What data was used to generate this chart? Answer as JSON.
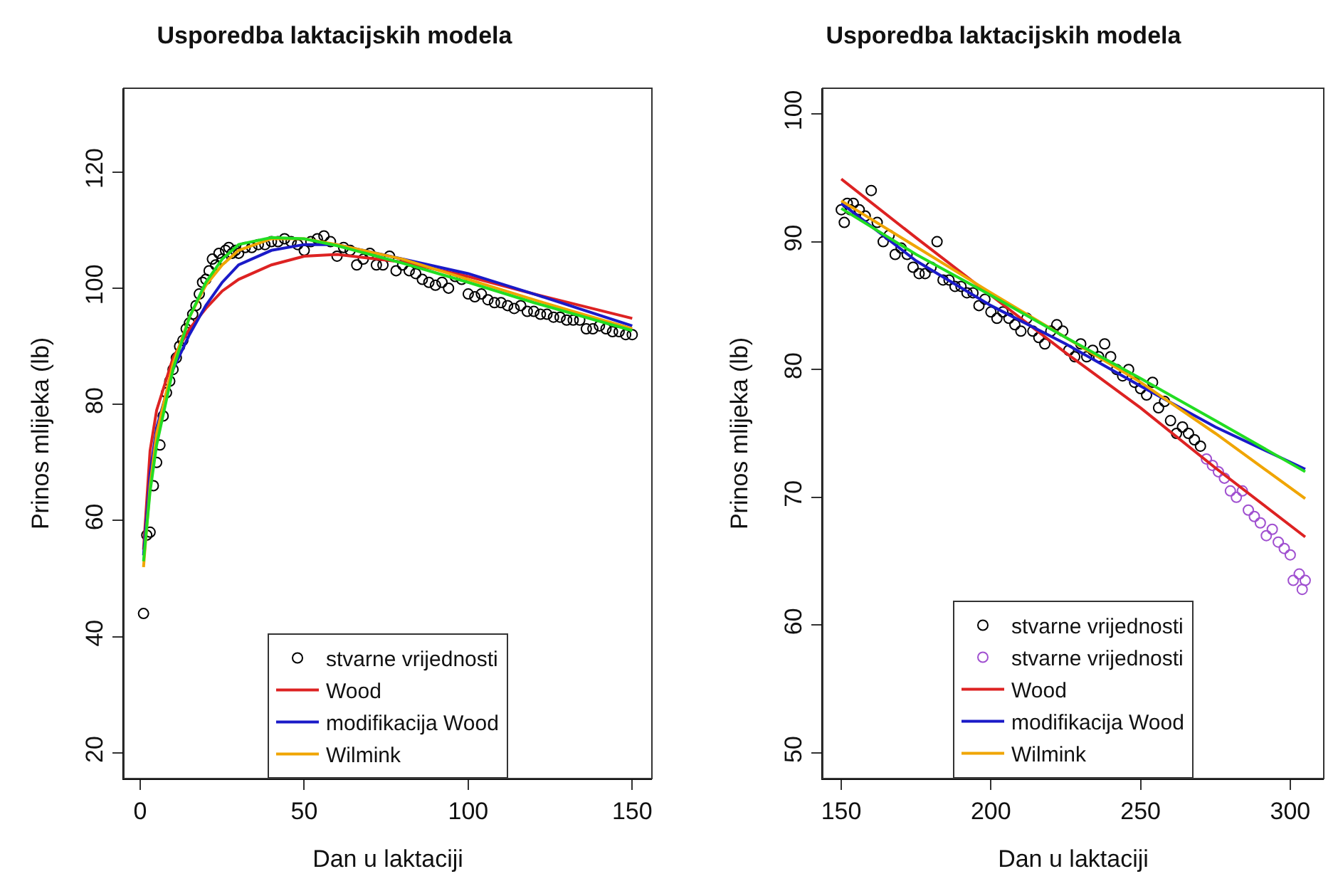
{
  "chart_data": [
    {
      "type": "scatter",
      "title": "Usporedba laktacijskih modela",
      "xlabel": "Dan u laktaciji",
      "ylabel": "Prinos mlijeka (lb)",
      "xlim": [
        -5,
        156
      ],
      "xticks": [
        0,
        50,
        100,
        150
      ],
      "ylim": [
        15.6,
        134.4
      ],
      "yticks": [
        20,
        40,
        60,
        80,
        100,
        120
      ],
      "grid": false,
      "legend": "bottom",
      "marker": "circle",
      "series": [
        {
          "name": "stvarne vrijednosti",
          "color": "#000000",
          "x": [
            1,
            2,
            3,
            4,
            5,
            6,
            7,
            8,
            9,
            10,
            11,
            12,
            13,
            14,
            15,
            16,
            17,
            18,
            19,
            20,
            21,
            22,
            23,
            24,
            25,
            26,
            27,
            28,
            29,
            30,
            32,
            34,
            36,
            38,
            40,
            42,
            44,
            46,
            48,
            50,
            52,
            54,
            56,
            58,
            60,
            62,
            64,
            66,
            68,
            70,
            72,
            74,
            76,
            78,
            80,
            82,
            84,
            86,
            88,
            90,
            92,
            94,
            96,
            98,
            100,
            102,
            104,
            106,
            108,
            110,
            112,
            114,
            116,
            118,
            120,
            122,
            124,
            126,
            128,
            130,
            132,
            134,
            136,
            138,
            140,
            142,
            144,
            146,
            148,
            150
          ],
          "values": [
            44,
            57.5,
            58,
            66,
            70,
            73,
            78,
            82,
            84,
            86,
            88,
            90,
            91,
            93,
            94,
            95.5,
            97,
            99,
            101,
            101.5,
            103,
            105,
            104,
            106,
            105,
            106.5,
            107,
            106,
            106.5,
            106,
            107,
            107,
            107.5,
            107.5,
            108,
            108,
            108.5,
            108,
            107.5,
            106.5,
            108,
            108.5,
            109,
            108,
            105.5,
            107,
            106.5,
            104,
            105,
            106,
            104,
            104,
            105.5,
            103,
            104,
            103,
            102.5,
            101.5,
            101,
            100.5,
            101,
            100,
            102,
            101.5,
            99,
            98.5,
            99,
            98,
            97.5,
            97.5,
            97,
            96.5,
            97,
            96,
            96,
            95.5,
            95.5,
            95,
            95,
            94.5,
            94.5,
            94.5,
            93,
            93,
            93.5,
            93,
            92.5,
            92.5,
            92,
            92
          ]
        },
        {
          "name": "Wood",
          "type": "line",
          "marker": "none",
          "color": "#dd2222",
          "x": [
            1,
            3,
            5,
            10,
            15,
            20,
            25,
            30,
            40,
            50,
            60,
            80,
            100,
            120,
            150
          ],
          "values": [
            55,
            72,
            79,
            88,
            93,
            96.5,
            99.5,
            101.5,
            104,
            105.5,
            105.8,
            104.5,
            102,
            99,
            94.8
          ]
        },
        {
          "name": "modifikacija Wood",
          "type": "line",
          "marker": "none",
          "color": "#1a1ac8",
          "x": [
            1,
            3,
            5,
            10,
            15,
            20,
            25,
            30,
            40,
            50,
            60,
            80,
            100,
            120,
            150
          ],
          "values": [
            54,
            68,
            76,
            86,
            92,
            97,
            101,
            104,
            106.5,
            107.5,
            107.5,
            105,
            102.5,
            99,
            93.5
          ]
        },
        {
          "name": "Wilmink",
          "type": "line",
          "marker": "none",
          "color": "#f0a500",
          "x": [
            1,
            3,
            5,
            10,
            15,
            20,
            25,
            30,
            40,
            50,
            60,
            80,
            100,
            120,
            150
          ],
          "values": [
            52,
            66,
            75,
            87,
            95,
            100.5,
            104,
            106.5,
            108.5,
            108.5,
            107.5,
            105,
            101.5,
            98,
            93
          ]
        },
        {
          "type": "line",
          "marker": "none",
          "color": "#22dd22",
          "x": [
            1,
            3,
            5,
            10,
            15,
            20,
            25,
            30,
            40,
            50,
            60,
            80,
            100,
            120,
            150
          ],
          "values": [
            53,
            65,
            73,
            86,
            95,
            101,
            105,
            107.5,
            108.7,
            108.5,
            107.3,
            104.3,
            101,
            97.5,
            92.7
          ]
        }
      ]
    },
    {
      "type": "scatter",
      "title": "Usporedba laktacijskih modela",
      "xlabel": "Dan u laktaciji",
      "ylabel": "Prinos mlijeka (lb)",
      "xlim": [
        143.8,
        311.2
      ],
      "xticks": [
        150,
        200,
        250,
        300
      ],
      "ylim": [
        48,
        102
      ],
      "yticks": [
        50,
        60,
        70,
        80,
        90,
        100
      ],
      "grid": false,
      "legend": "bottom",
      "marker": "circle",
      "series": [
        {
          "name": "stvarne vrijednosti",
          "color": "#000000",
          "x": [
            150,
            151,
            152,
            153,
            154,
            156,
            158,
            160,
            162,
            164,
            166,
            168,
            170,
            172,
            174,
            176,
            178,
            180,
            182,
            184,
            186,
            188,
            190,
            192,
            194,
            196,
            198,
            200,
            202,
            204,
            206,
            208,
            210,
            212,
            214,
            216,
            218,
            220,
            222,
            224,
            226,
            228,
            230,
            232,
            234,
            236,
            238,
            240,
            242,
            244,
            246,
            248,
            250,
            252,
            254,
            256,
            258,
            260,
            262,
            264,
            266,
            268,
            270
          ],
          "values": [
            92.5,
            91.5,
            93,
            92.5,
            93,
            92.5,
            92,
            94,
            91.5,
            90,
            90.5,
            89,
            89.5,
            89,
            88,
            87.5,
            87.5,
            88,
            90,
            87,
            87,
            86.5,
            86.5,
            86,
            86,
            85,
            85.5,
            84.5,
            84,
            84.5,
            84,
            83.5,
            83,
            84,
            83,
            82.5,
            82,
            83,
            83.5,
            83,
            81.5,
            81,
            82,
            81,
            81.5,
            81,
            82,
            81,
            80,
            79.5,
            80,
            79,
            78.5,
            78,
            79,
            77,
            77.5,
            76,
            75,
            75.5,
            75,
            74.5,
            74
          ]
        },
        {
          "name": "stvarne vrijednosti",
          "color": "#a050d0",
          "x": [
            272,
            274,
            276,
            278,
            280,
            282,
            284,
            286,
            288,
            290,
            292,
            294,
            296,
            298,
            300,
            301,
            303,
            304,
            305
          ],
          "values": [
            73,
            72.5,
            72,
            71.5,
            70.5,
            70,
            70.5,
            69,
            68.5,
            68,
            67,
            67.5,
            66.5,
            66,
            65.5,
            63.5,
            64,
            62.8,
            63.5
          ]
        },
        {
          "name": "Wood",
          "type": "line",
          "marker": "none",
          "color": "#dd2222",
          "x": [
            150,
            175,
            200,
            225,
            250,
            275,
            305
          ],
          "values": [
            94.9,
            90.3,
            85.8,
            81.3,
            77,
            72.3,
            66.9
          ]
        },
        {
          "name": "modifikacija Wood",
          "type": "line",
          "marker": "none",
          "color": "#1a1ac8",
          "x": [
            150,
            175,
            200,
            225,
            250,
            275,
            305
          ],
          "values": [
            93,
            88.5,
            85,
            82,
            78.7,
            75.5,
            72.2
          ]
        },
        {
          "name": "Wilmink",
          "type": "line",
          "marker": "none",
          "color": "#f0a500",
          "x": [
            150,
            175,
            200,
            225,
            250,
            275,
            305
          ],
          "values": [
            93.2,
            89.6,
            86,
            82.5,
            79,
            75,
            69.9
          ]
        },
        {
          "type": "line",
          "marker": "none",
          "color": "#22dd22",
          "x": [
            150,
            175,
            200,
            225,
            250,
            275,
            305
          ],
          "values": [
            92.6,
            89,
            85.8,
            82.5,
            79.3,
            76,
            72
          ]
        }
      ]
    }
  ]
}
